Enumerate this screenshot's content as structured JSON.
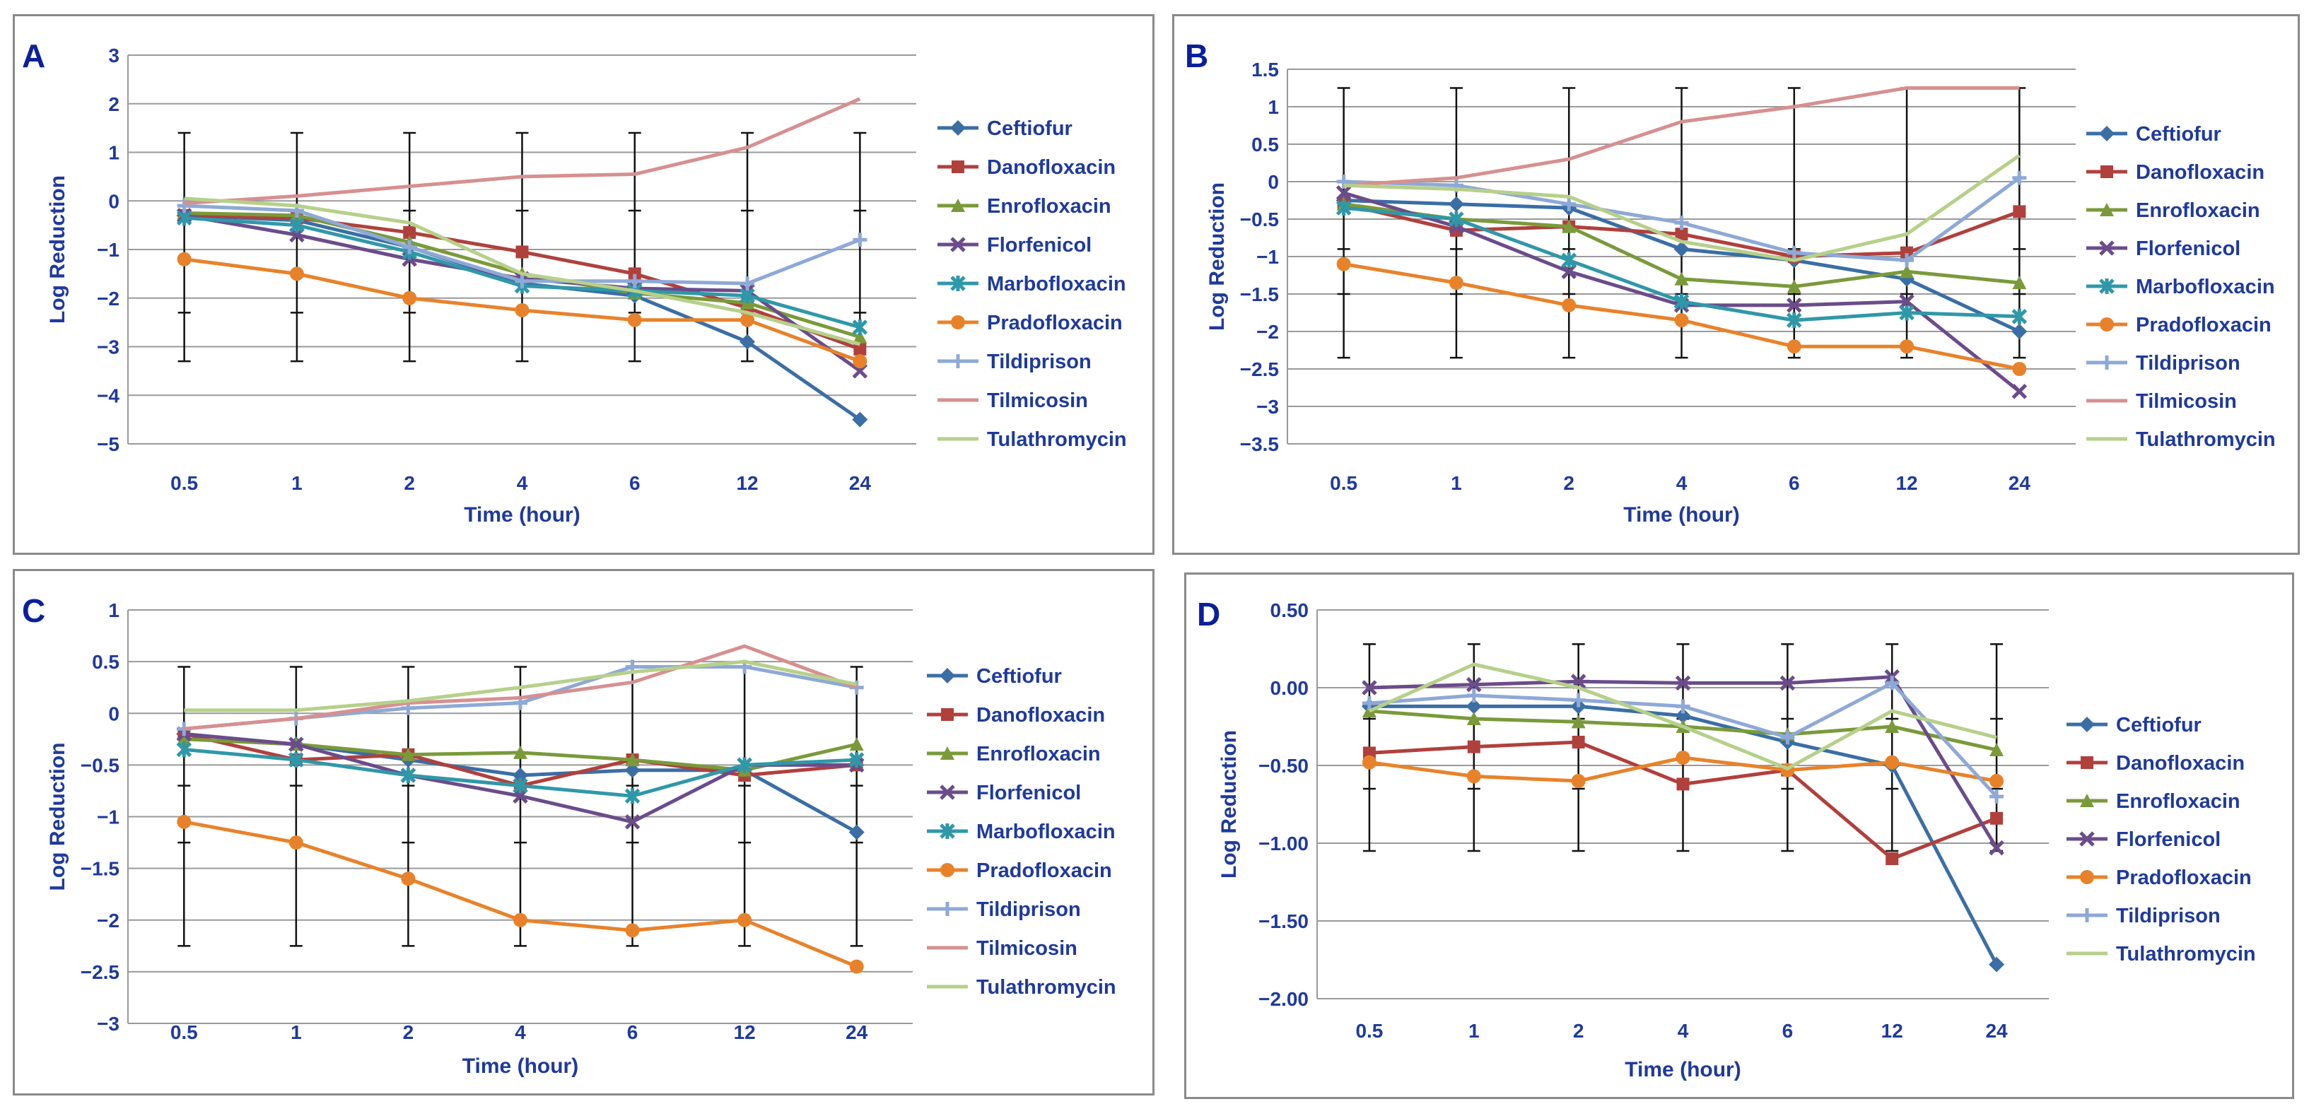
{
  "series_styles": {
    "Ceftiofur": {
      "color": "#3a6ea5",
      "marker": "diamond"
    },
    "Danofloxacin": {
      "color": "#b0403c",
      "marker": "square"
    },
    "Enrofloxacin": {
      "color": "#7a9a3a",
      "marker": "triangle"
    },
    "Florfenicol": {
      "color": "#6b4c8a",
      "marker": "x"
    },
    "Marbofloxacin": {
      "color": "#2f98a8",
      "marker": "star"
    },
    "Pradofloxacin": {
      "color": "#e8822a",
      "marker": "circle"
    },
    "Tildiprison": {
      "color": "#8ea9d6",
      "marker": "plus"
    },
    "Tilmicosin": {
      "color": "#d69090",
      "marker": "none"
    },
    "Tulathromycin": {
      "color": "#b6d08a",
      "marker": "none"
    }
  },
  "chart_data": [
    {
      "type": "line",
      "panel_label": "A",
      "categories": [
        "0.5",
        "1",
        "2",
        "4",
        "6",
        "12",
        "24"
      ],
      "xlabel": "Time (hour)",
      "ylabel": "Log Reduction",
      "ylim": [
        -5,
        3
      ],
      "yticks": [
        -5,
        -4,
        -3,
        -2,
        -1,
        0,
        1,
        2,
        3
      ],
      "ytick_labels": [
        "−5",
        "−4",
        "−3",
        "−2",
        "−1",
        "0",
        "1",
        "2",
        "3"
      ],
      "errorbars": {
        "upper": 1.4,
        "lower": -3.3,
        "inner": [
          -2.3,
          -0.2
        ]
      },
      "series": [
        {
          "name": "Ceftiofur",
          "values": [
            -0.3,
            -0.4,
            -0.95,
            -1.7,
            -1.95,
            -2.9,
            -4.5
          ]
        },
        {
          "name": "Danofloxacin",
          "values": [
            -0.3,
            -0.35,
            -0.65,
            -1.05,
            -1.5,
            -2.2,
            -3.05
          ]
        },
        {
          "name": "Enrofloxacin",
          "values": [
            -0.25,
            -0.3,
            -0.85,
            -1.5,
            -1.9,
            -2.1,
            -2.8
          ]
        },
        {
          "name": "Florfenicol",
          "values": [
            -0.3,
            -0.7,
            -1.2,
            -1.6,
            -1.8,
            -1.85,
            -3.5
          ]
        },
        {
          "name": "Marbofloxacin",
          "values": [
            -0.35,
            -0.5,
            -1.05,
            -1.75,
            -1.85,
            -1.95,
            -2.6
          ]
        },
        {
          "name": "Pradofloxacin",
          "values": [
            -1.2,
            -1.5,
            -2.0,
            -2.25,
            -2.45,
            -2.45,
            -3.3
          ]
        },
        {
          "name": "Tildiprison",
          "values": [
            -0.1,
            -0.2,
            -0.95,
            -1.65,
            -1.65,
            -1.7,
            -0.8
          ]
        },
        {
          "name": "Tilmicosin",
          "values": [
            -0.05,
            0.1,
            0.3,
            0.5,
            0.55,
            1.1,
            2.1
          ]
        },
        {
          "name": "Tulathromycin",
          "values": [
            0.05,
            -0.1,
            -0.45,
            -1.5,
            -1.85,
            -2.3,
            -2.95
          ]
        }
      ]
    },
    {
      "type": "line",
      "panel_label": "B",
      "categories": [
        "0.5",
        "1",
        "2",
        "4",
        "6",
        "12",
        "24"
      ],
      "xlabel": "Time (hour)",
      "ylabel": "Log Reduction",
      "ylim": [
        -3.5,
        1.5
      ],
      "yticks": [
        -3.5,
        -3,
        -2.5,
        -2,
        -1.5,
        -1,
        -0.5,
        0,
        0.5,
        1,
        1.5
      ],
      "ytick_labels": [
        "−3.5",
        "−3",
        "−2.5",
        "−2",
        "−1.5",
        "−1",
        "−0.5",
        "0",
        "0.5",
        "1",
        "1.5"
      ],
      "errorbars": {
        "upper": 1.25,
        "lower": -2.35,
        "inner": [
          -1.5,
          -0.9
        ]
      },
      "series": [
        {
          "name": "Ceftiofur",
          "values": [
            -0.25,
            -0.3,
            -0.35,
            -0.9,
            -1.05,
            -1.3,
            -2.0
          ]
        },
        {
          "name": "Danofloxacin",
          "values": [
            -0.3,
            -0.65,
            -0.6,
            -0.7,
            -1.0,
            -0.95,
            -0.4
          ]
        },
        {
          "name": "Enrofloxacin",
          "values": [
            -0.3,
            -0.5,
            -0.6,
            -1.3,
            -1.4,
            -1.2,
            -1.35
          ]
        },
        {
          "name": "Florfenicol",
          "values": [
            -0.15,
            -0.6,
            -1.2,
            -1.65,
            -1.65,
            -1.6,
            -2.8
          ]
        },
        {
          "name": "Marbofloxacin",
          "values": [
            -0.35,
            -0.5,
            -1.05,
            -1.6,
            -1.85,
            -1.75,
            -1.8
          ]
        },
        {
          "name": "Pradofloxacin",
          "values": [
            -1.1,
            -1.35,
            -1.65,
            -1.85,
            -2.2,
            -2.2,
            -2.5
          ]
        },
        {
          "name": "Tildiprison",
          "values": [
            0.0,
            -0.05,
            -0.3,
            -0.55,
            -0.95,
            -1.05,
            0.05
          ]
        },
        {
          "name": "Tilmicosin",
          "values": [
            -0.05,
            0.05,
            0.3,
            0.8,
            1.0,
            1.25,
            1.25
          ]
        },
        {
          "name": "Tulathromycin",
          "values": [
            -0.05,
            -0.1,
            -0.2,
            -0.8,
            -1.05,
            -0.7,
            0.35
          ]
        }
      ]
    },
    {
      "type": "line",
      "panel_label": "C",
      "categories": [
        "0.5",
        "1",
        "2",
        "4",
        "6",
        "12",
        "24"
      ],
      "xlabel": "Time (hour)",
      "ylabel": "Log Reduction",
      "ylim": [
        -3,
        1
      ],
      "yticks": [
        -3,
        -2.5,
        -2,
        -1.5,
        -1,
        -0.5,
        0,
        0.5,
        1
      ],
      "ytick_labels": [
        "−3",
        "−2.5",
        "−2",
        "−1.5",
        "−1",
        "−0.5",
        "0",
        "0.5",
        "1"
      ],
      "errorbars": {
        "upper": 0.45,
        "lower": -2.25,
        "inner": [
          -1.25,
          -0.7
        ]
      },
      "series": [
        {
          "name": "Ceftiofur",
          "values": [
            -0.2,
            -0.3,
            -0.45,
            -0.6,
            -0.55,
            -0.55,
            -1.15
          ]
        },
        {
          "name": "Danofloxacin",
          "values": [
            -0.2,
            -0.45,
            -0.4,
            -0.7,
            -0.45,
            -0.6,
            -0.5
          ]
        },
        {
          "name": "Enrofloxacin",
          "values": [
            -0.25,
            -0.3,
            -0.4,
            -0.38,
            -0.45,
            -0.55,
            -0.3
          ]
        },
        {
          "name": "Florfenicol",
          "values": [
            -0.2,
            -0.3,
            -0.6,
            -0.8,
            -1.05,
            -0.5,
            -0.5
          ]
        },
        {
          "name": "Marbofloxacin",
          "values": [
            -0.35,
            -0.45,
            -0.6,
            -0.7,
            -0.8,
            -0.5,
            -0.45
          ]
        },
        {
          "name": "Pradofloxacin",
          "values": [
            -1.05,
            -1.25,
            -1.6,
            -2.0,
            -2.1,
            -2.0,
            -2.45
          ]
        },
        {
          "name": "Tildiprison",
          "values": [
            -0.15,
            -0.05,
            0.05,
            0.1,
            0.45,
            0.45,
            0.25
          ]
        },
        {
          "name": "Tilmicosin",
          "values": [
            -0.15,
            -0.05,
            0.1,
            0.15,
            0.3,
            0.65,
            0.25
          ]
        },
        {
          "name": "Tulathromycin",
          "values": [
            0.03,
            0.03,
            0.12,
            0.25,
            0.4,
            0.5,
            0.28
          ]
        }
      ]
    },
    {
      "type": "line",
      "panel_label": "D",
      "categories": [
        "0.5",
        "1",
        "2",
        "4",
        "6",
        "12",
        "24"
      ],
      "xlabel": "Time (hour)",
      "ylabel": "Log Reduction",
      "ylim": [
        -2.0,
        0.5
      ],
      "yticks": [
        -2,
        -1.5,
        -1,
        -0.5,
        0,
        0.5
      ],
      "ytick_labels": [
        "−2.00",
        "−1.50",
        "−1.00",
        "−0.50",
        "0.00",
        "0.50"
      ],
      "errorbars": {
        "upper": 0.28,
        "lower": -1.05,
        "inner": [
          -0.65,
          -0.2
        ]
      },
      "series": [
        {
          "name": "Ceftiofur",
          "values": [
            -0.12,
            -0.12,
            -0.12,
            -0.18,
            -0.35,
            -0.5,
            -1.78
          ]
        },
        {
          "name": "Danofloxacin",
          "values": [
            -0.42,
            -0.38,
            -0.35,
            -0.62,
            -0.53,
            -1.1,
            -0.84
          ]
        },
        {
          "name": "Enrofloxacin",
          "values": [
            -0.15,
            -0.2,
            -0.22,
            -0.25,
            -0.3,
            -0.25,
            -0.4
          ]
        },
        {
          "name": "Florfenicol",
          "values": [
            0.0,
            0.02,
            0.04,
            0.03,
            0.03,
            0.07,
            -1.03
          ]
        },
        {
          "name": "Pradofloxacin",
          "values": [
            -0.48,
            -0.57,
            -0.6,
            -0.45,
            -0.53,
            -0.48,
            -0.6
          ]
        },
        {
          "name": "Tildiprison",
          "values": [
            -0.1,
            -0.05,
            -0.08,
            -0.12,
            -0.32,
            0.03,
            -0.7
          ]
        },
        {
          "name": "Tulathromycin",
          "values": [
            -0.15,
            0.15,
            0.0,
            -0.25,
            -0.52,
            -0.15,
            -0.32
          ]
        }
      ]
    }
  ]
}
